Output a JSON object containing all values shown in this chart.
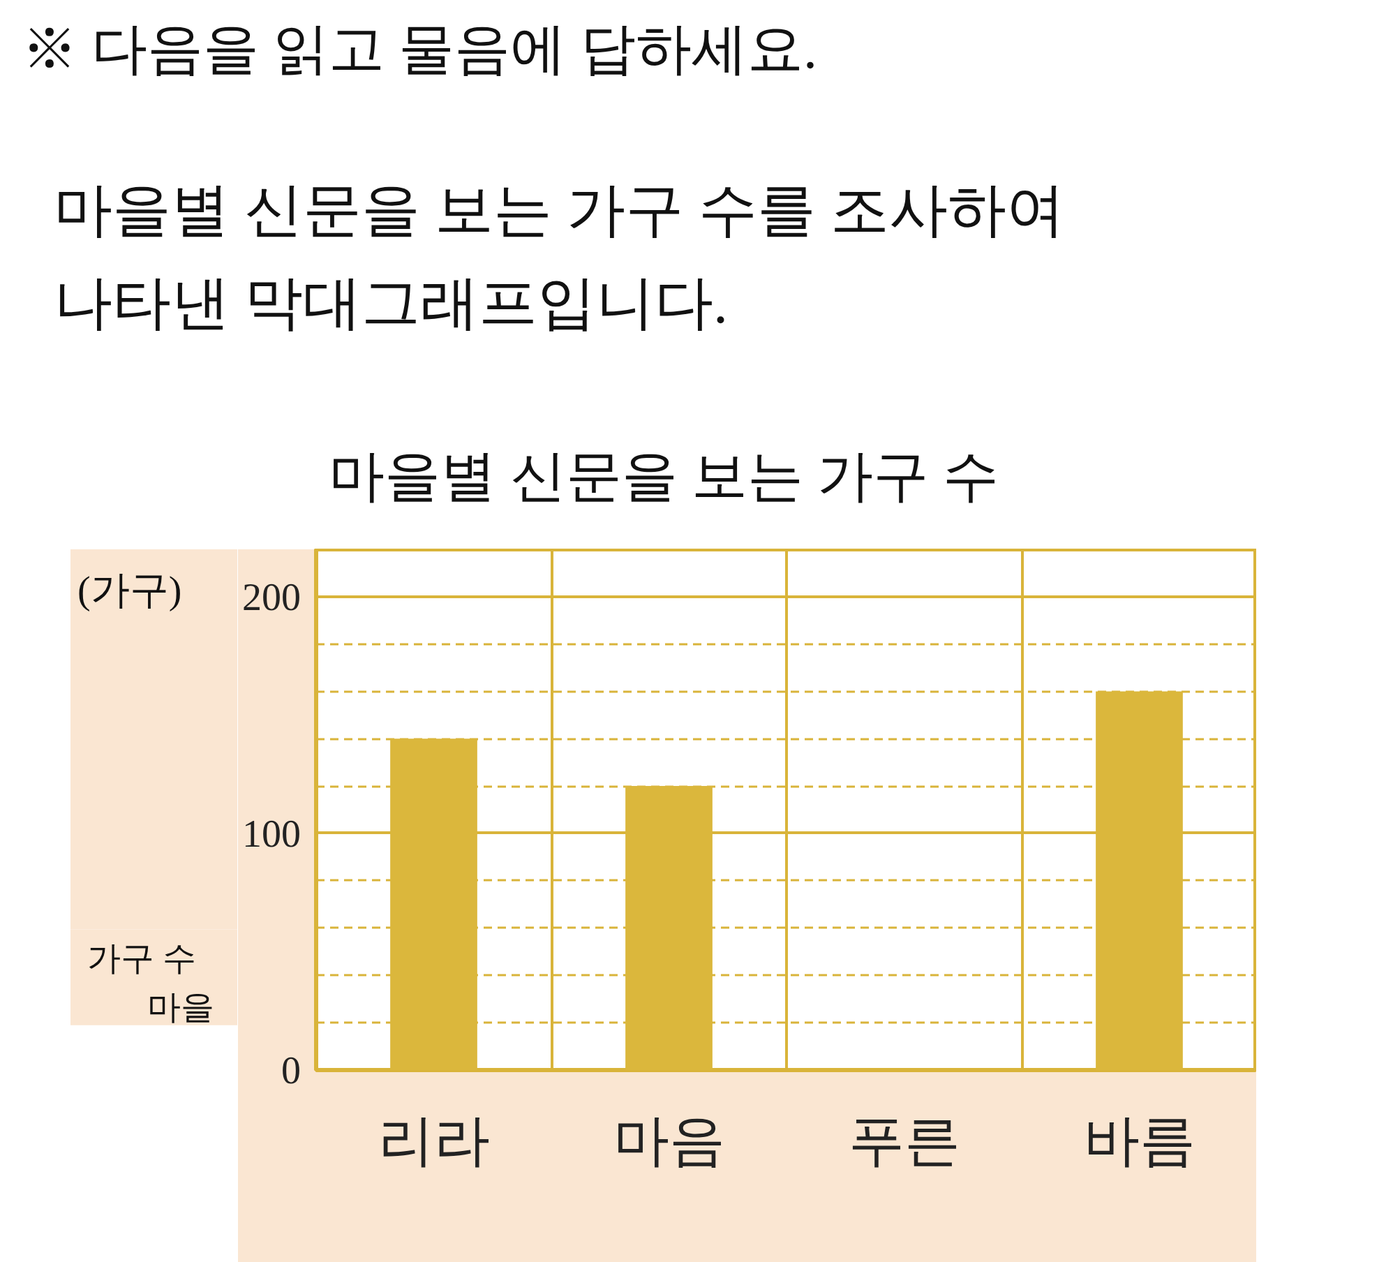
{
  "chart_data": {
    "type": "bar",
    "title": "마을별 신문을 보는 가구 수",
    "xlabel": "마을",
    "ylabel": "가구 수",
    "annotations": [
      "※ 다음을 읽고 물음에 답하세요.",
      "마을별 신문을 보는 가구 수를 조사하여\n나타낸 막대그래프입니다.",
      "(가구)"
    ],
    "categories": [
      "리라",
      "마음",
      "푸른",
      "바름"
    ],
    "values": [
      140,
      120,
      null,
      160
    ],
    "color": "#dbb73c",
    "ylim": [
      0,
      220
    ],
    "yticks": [
      0,
      {
        "value": 20,
        "label": null
      },
      {
        "value": 40,
        "label": null
      },
      {
        "value": 60,
        "label": null
      },
      {
        "value": 80,
        "label": null
      },
      100,
      {
        "value": 120,
        "label": null
      },
      {
        "value": 140,
        "label": null
      },
      {
        "value": 160,
        "label": null
      },
      {
        "value": 180,
        "label": null
      },
      200
    ],
    "grid": true
  }
}
